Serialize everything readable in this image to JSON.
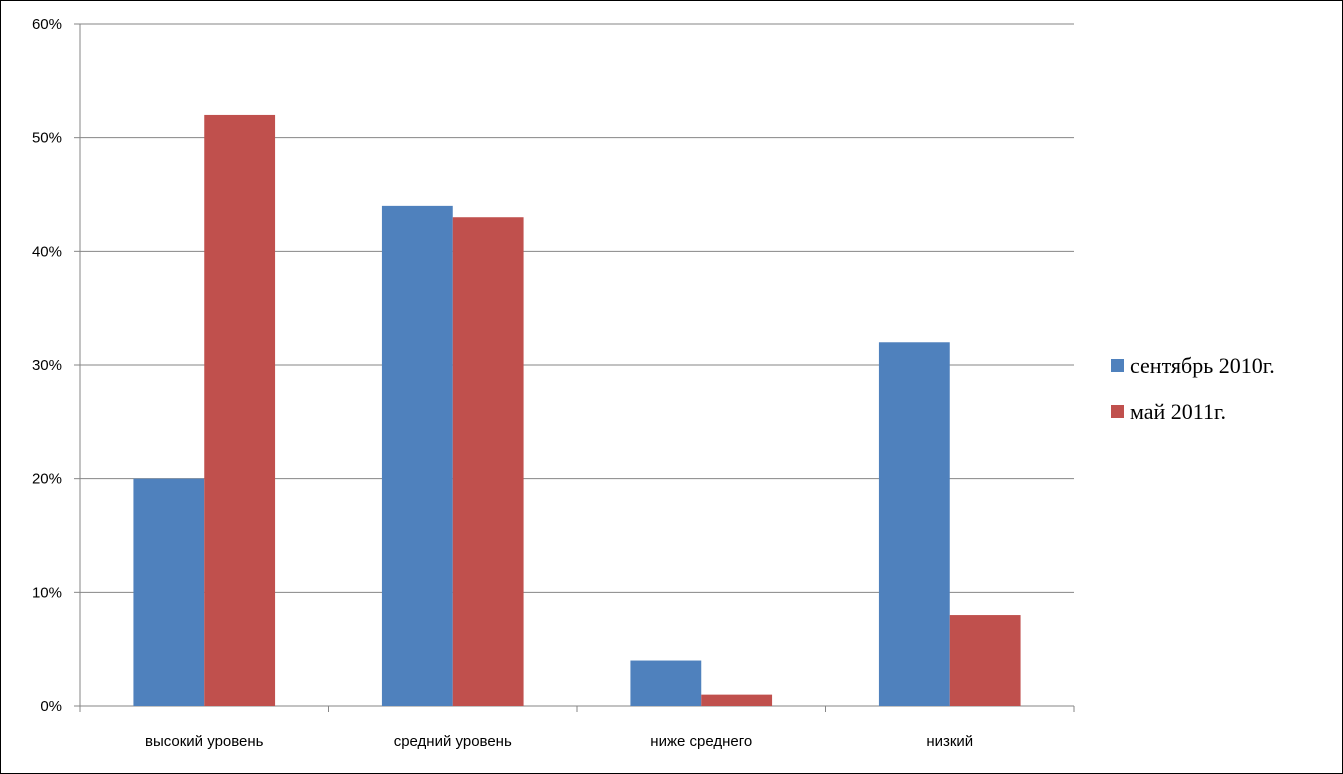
{
  "chart_data": {
    "type": "bar",
    "title": "",
    "xlabel": "",
    "ylabel": "",
    "categories": [
      "высокий уровень",
      "средний уровень",
      "ниже среднего",
      "низкий"
    ],
    "series": [
      {
        "name": "сентябрь 2010г.",
        "color": "#4F81BD",
        "values": [
          20,
          44,
          4,
          32
        ]
      },
      {
        "name": "май 2011г.",
        "color": "#C0504D",
        "values": [
          52,
          43,
          1,
          8
        ]
      }
    ],
    "ylim": [
      0,
      60
    ],
    "y_ticks": [
      0,
      10,
      20,
      30,
      40,
      50,
      60
    ],
    "y_tick_labels": [
      "0%",
      "10%",
      "20%",
      "30%",
      "40%",
      "50%",
      "60%"
    ],
    "grid": true,
    "legend_position": "right"
  }
}
